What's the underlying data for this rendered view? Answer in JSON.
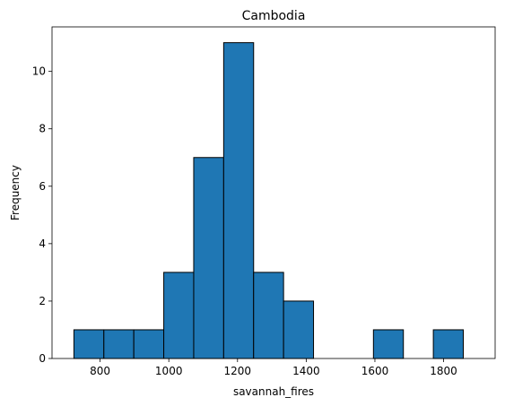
{
  "chart_data": {
    "type": "bar",
    "subtype": "histogram",
    "title": "Cambodia",
    "xlabel": "savannah_fires",
    "ylabel": "Frequency",
    "bin_edges": [
      723.7,
      810.9,
      898.1,
      985.3,
      1072.5,
      1159.7,
      1246.9,
      1334.1,
      1421.3,
      1508.5,
      1595.7,
      1682.9,
      1770.1,
      1857.3
    ],
    "bin_edges_note_removed": "",
    "counts": [
      1,
      1,
      1,
      3,
      7,
      11,
      3,
      2,
      0,
      0,
      1,
      0,
      1
    ],
    "xlim": [
      660,
      1950
    ],
    "ylim": [
      0,
      11.55
    ],
    "xticks": [
      800,
      1000,
      1200,
      1400,
      1600,
      1800
    ],
    "yticks": [
      0,
      2,
      4,
      6,
      8,
      10
    ],
    "bar_color": "#1f77b4",
    "edge_color": "#000000",
    "grid": false,
    "legend": "none"
  }
}
